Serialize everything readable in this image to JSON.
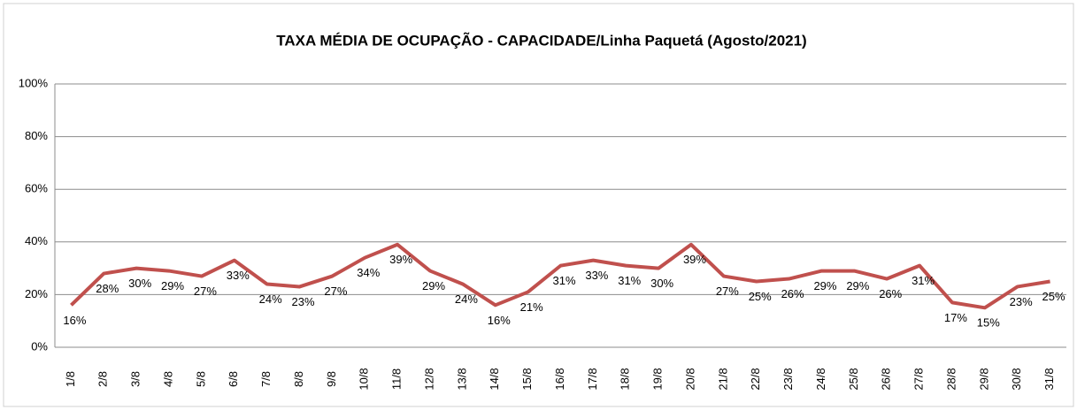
{
  "chart_data": {
    "type": "line",
    "title": "TAXA MÉDIA DE OCUPAÇÃO - CAPACIDADE/Linha Paquetá (Agosto/2021)",
    "categories": [
      "1/8",
      "2/8",
      "3/8",
      "4/8",
      "5/8",
      "6/8",
      "7/8",
      "8/8",
      "9/8",
      "10/8",
      "11/8",
      "12/8",
      "13/8",
      "14/8",
      "15/8",
      "16/8",
      "17/8",
      "18/8",
      "19/8",
      "20/8",
      "21/8",
      "22/8",
      "23/8",
      "24/8",
      "25/8",
      "26/8",
      "27/8",
      "28/8",
      "29/8",
      "30/8",
      "31/8"
    ],
    "series": [
      {
        "color": "#c0504d",
        "values": [
          16,
          28,
          30,
          29,
          27,
          33,
          24,
          23,
          27,
          34,
          39,
          29,
          24,
          16,
          21,
          31,
          33,
          31,
          30,
          39,
          27,
          25,
          26,
          29,
          29,
          26,
          31,
          17,
          15,
          23,
          25
        ],
        "value_labels": [
          "16%",
          "28%",
          "30%",
          "29%",
          "27%",
          "33%",
          "24%",
          "23%",
          "27%",
          "34%",
          "39%",
          "29%",
          "24%",
          "16%",
          "21%",
          "31%",
          "33%",
          "31%",
          "30%",
          "39%",
          "27%",
          "25%",
          "26%",
          "29%",
          "29%",
          "26%",
          "31%",
          "17%",
          "15%",
          "23%",
          "25%"
        ]
      }
    ],
    "ylim": [
      0,
      100
    ],
    "yticks": [
      {
        "value": 0,
        "label": "0%"
      },
      {
        "value": 20,
        "label": "20%"
      },
      {
        "value": 40,
        "label": "40%"
      },
      {
        "value": 60,
        "label": "60%"
      },
      {
        "value": 80,
        "label": "80%"
      },
      {
        "value": 100,
        "label": "100%"
      }
    ],
    "grid": true
  }
}
